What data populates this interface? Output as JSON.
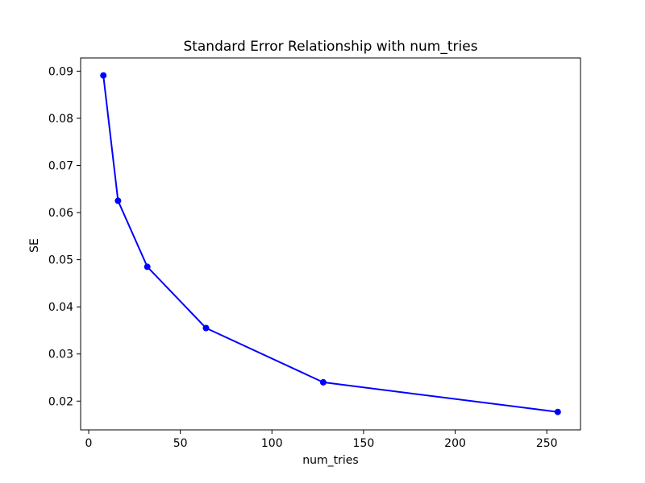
{
  "figure": {
    "background": "#ffffff"
  },
  "chart_data": {
    "type": "line",
    "title": "Standard Error Relationship with num_tries",
    "xlabel": "num_tries",
    "ylabel": "SE",
    "x": [
      8,
      16,
      32,
      64,
      128,
      256
    ],
    "series": [
      {
        "name": "SE",
        "color": "#0000ff",
        "marker": "circle",
        "values": [
          0.0891,
          0.0625,
          0.0485,
          0.0355,
          0.024,
          0.0177
        ]
      }
    ],
    "xlim": [
      -4.4,
      268.4
    ],
    "ylim": [
      0.0139,
      0.0928
    ],
    "xticks": [
      0,
      50,
      100,
      150,
      200,
      250
    ],
    "yticks": [
      0.02,
      0.03,
      0.04,
      0.05,
      0.06,
      0.07,
      0.08,
      0.09
    ],
    "ytick_decimals": 2,
    "grid": false,
    "legend": "none",
    "axis_color": "#000000",
    "text_color": "#000000"
  }
}
